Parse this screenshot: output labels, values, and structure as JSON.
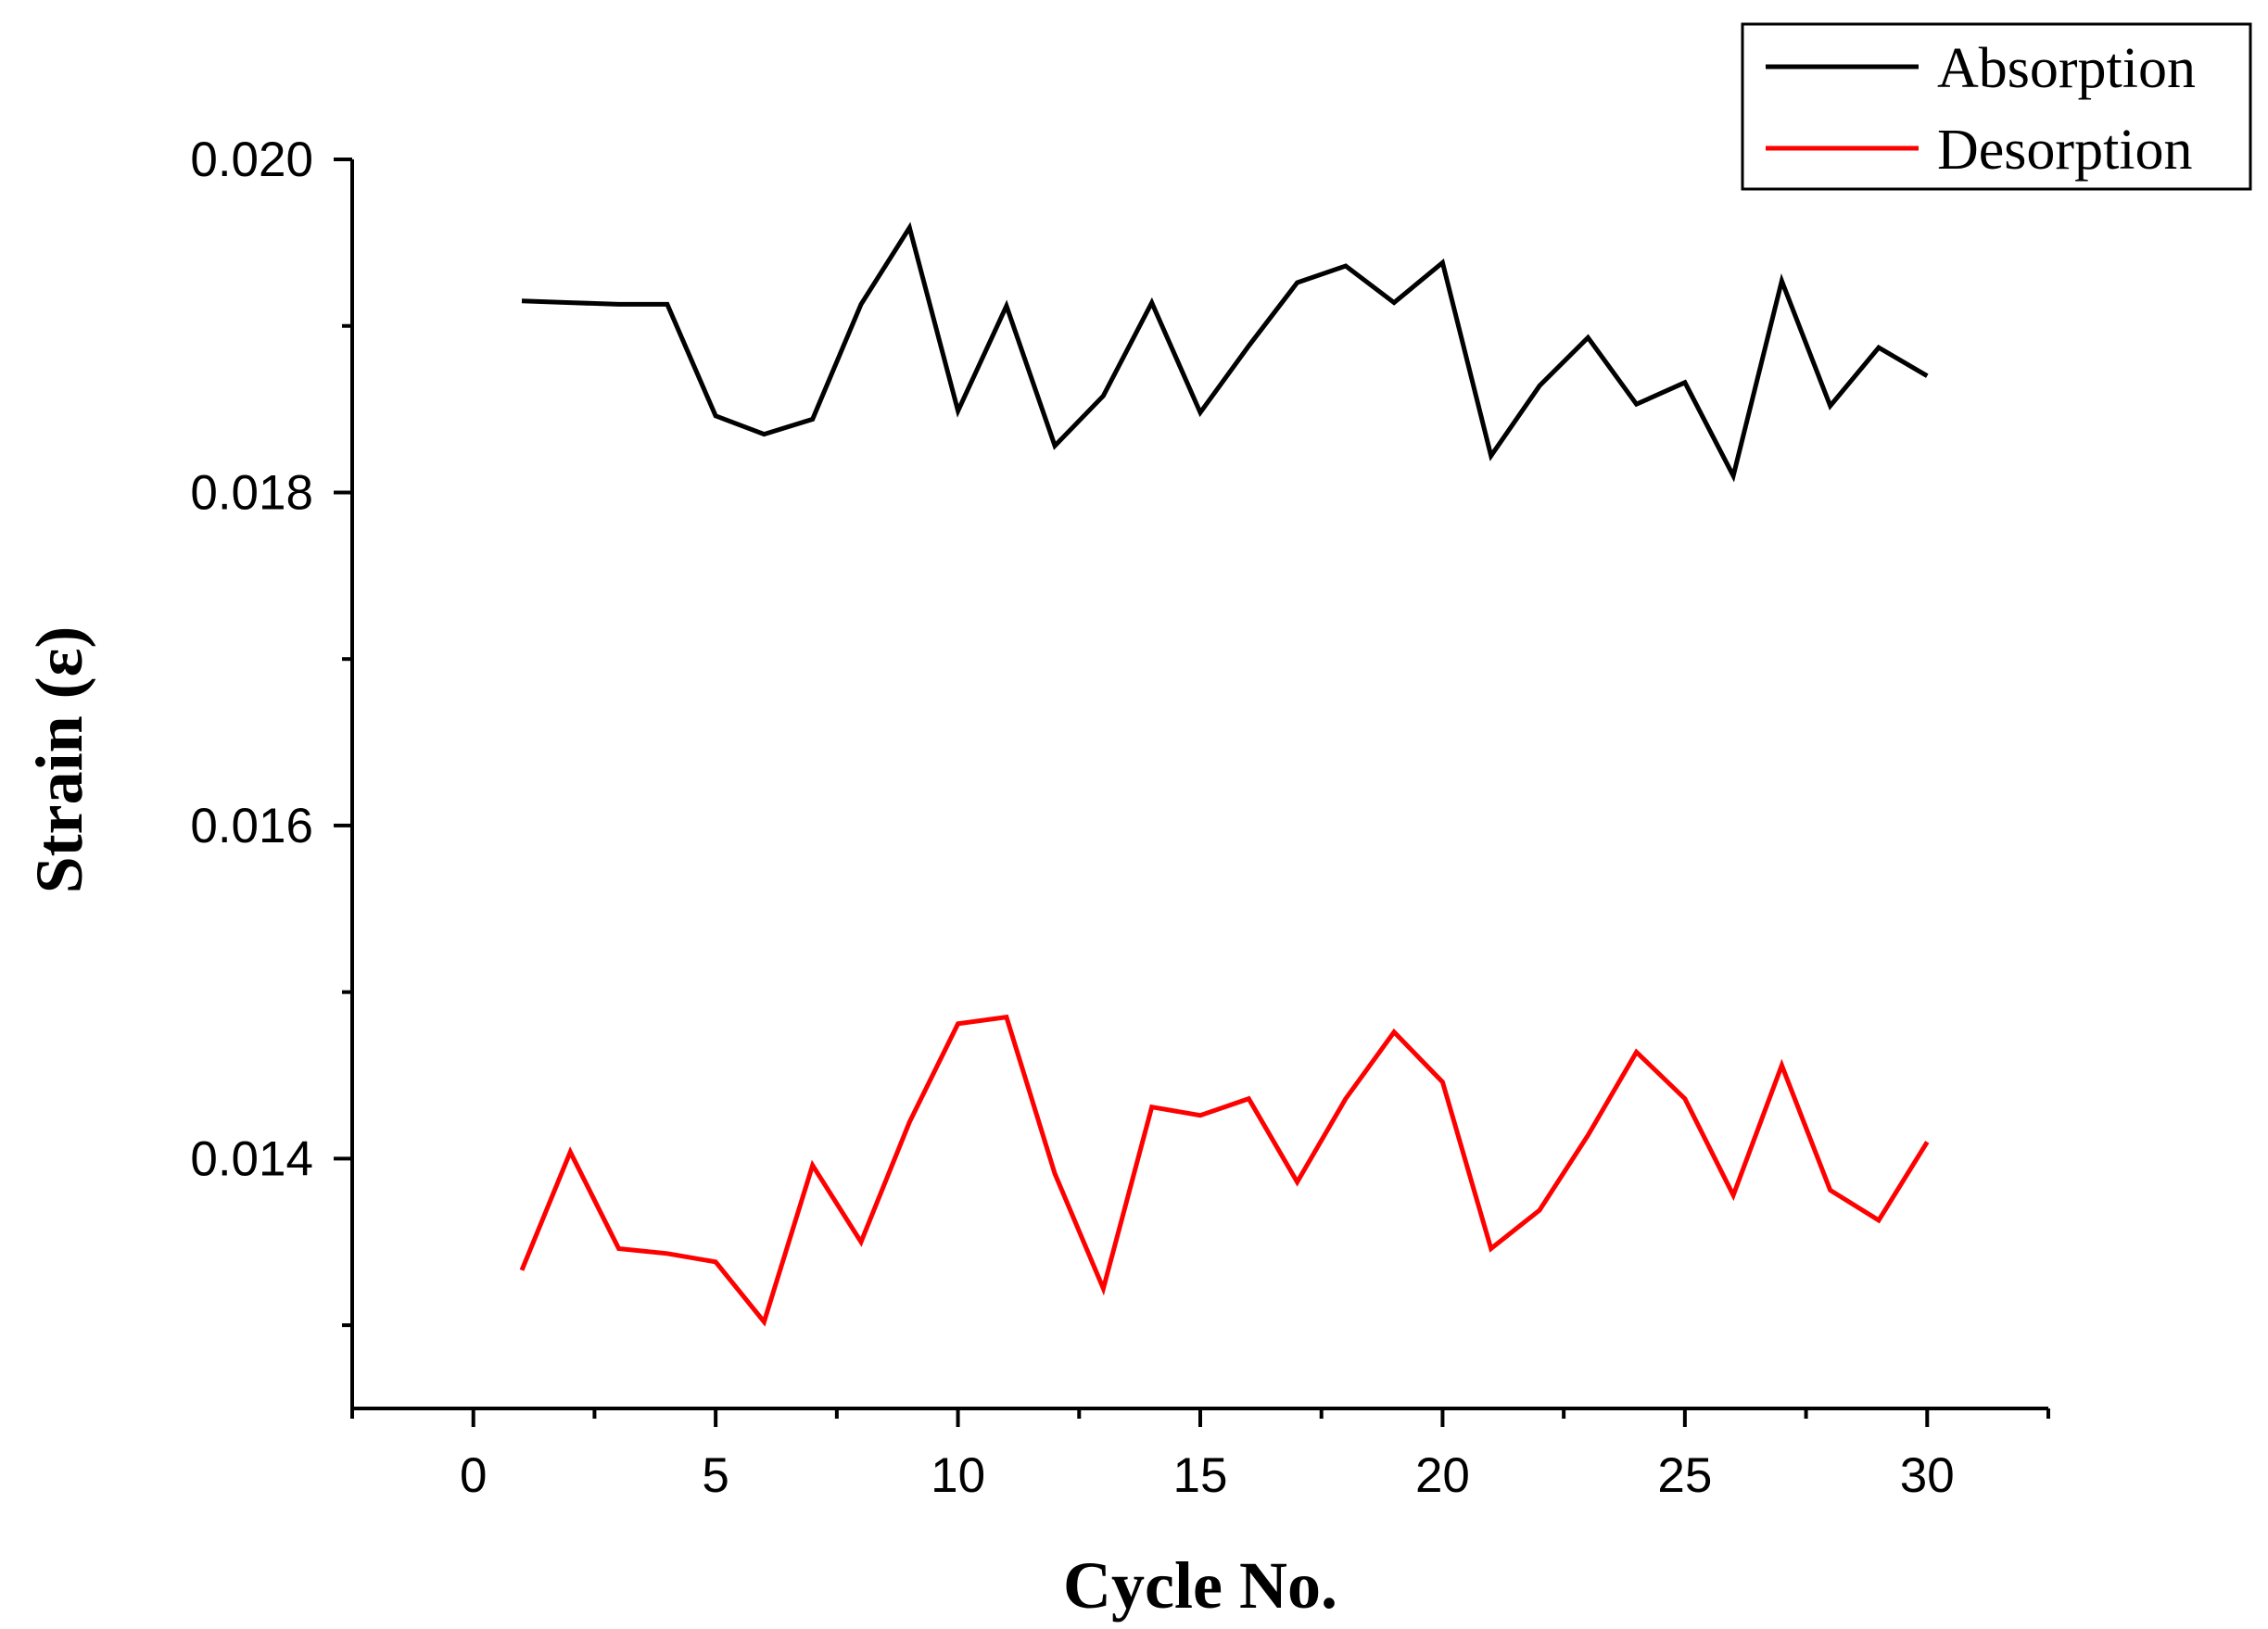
{
  "chart_data": {
    "type": "line",
    "title": "",
    "xlabel": "Cycle No.",
    "ylabel": "Strain (ε)",
    "xlim": [
      -2.5,
      32.5
    ],
    "ylim": [
      0.0125,
      0.02
    ],
    "x_ticks": [
      0,
      5,
      10,
      15,
      20,
      25,
      30
    ],
    "x_tick_labels": [
      "0",
      "5",
      "10",
      "15",
      "20",
      "25",
      "30"
    ],
    "x_minor_ticks": [
      -2.5,
      2.5,
      7.5,
      12.5,
      17.5,
      22.5,
      27.5,
      32.5
    ],
    "y_ticks": [
      0.014,
      0.016,
      0.018,
      0.02
    ],
    "y_tick_labels": [
      "0.014",
      "0.016",
      "0.018",
      "0.020"
    ],
    "y_minor_ticks": [
      0.013,
      0.015,
      0.017,
      0.019
    ],
    "grid": false,
    "legend_position": "top-right",
    "x": [
      1,
      2,
      3,
      4,
      5,
      6,
      7,
      8,
      9,
      10,
      11,
      12,
      13,
      14,
      15,
      16,
      17,
      18,
      19,
      20,
      21,
      22,
      23,
      24,
      25,
      26,
      27,
      28,
      29,
      30
    ],
    "series": [
      {
        "name": "Absorption",
        "color": "#000000",
        "values": [
          0.01915,
          0.01914,
          0.01913,
          0.01913,
          0.01846,
          0.01835,
          0.01844,
          0.01913,
          0.01959,
          0.01849,
          0.01912,
          0.01828,
          0.01858,
          0.01914,
          0.01848,
          0.01888,
          0.01926,
          0.01936,
          0.01914,
          0.01938,
          0.01822,
          0.01864,
          0.01893,
          0.01853,
          0.01866,
          0.0181,
          0.01927,
          0.01852,
          0.01887,
          0.0187
        ]
      },
      {
        "name": "Desorption",
        "color": "#ff0000",
        "values": [
          0.01333,
          0.01404,
          0.01346,
          0.01343,
          0.01338,
          0.01302,
          0.01396,
          0.0135,
          0.01422,
          0.01481,
          0.01485,
          0.01391,
          0.01322,
          0.01431,
          0.01426,
          0.01436,
          0.01386,
          0.01436,
          0.01476,
          0.01446,
          0.01346,
          0.01369,
          0.01414,
          0.01464,
          0.01436,
          0.01378,
          0.01456,
          0.01381,
          0.01363,
          0.0141
        ]
      }
    ]
  }
}
